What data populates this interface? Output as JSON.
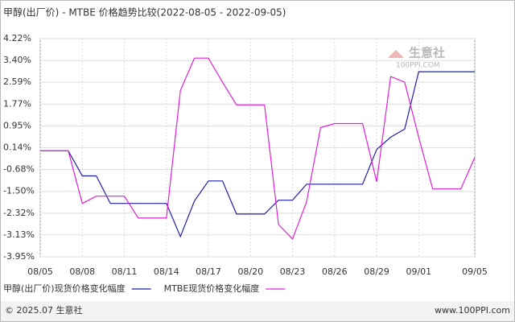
{
  "chart_data": {
    "type": "line",
    "title": "甲醇(出厂价) - MTBE 价格趋势比较(2022-08-05 - 2022-09-05)",
    "categories": [
      "08/05",
      null,
      null,
      "08/08",
      null,
      null,
      "08/11",
      null,
      null,
      "08/14",
      null,
      null,
      "08/17",
      null,
      null,
      "08/20",
      null,
      null,
      "08/23",
      null,
      null,
      "08/26",
      null,
      null,
      "08/29",
      null,
      null,
      "09/01",
      null,
      null,
      null,
      "09/05"
    ],
    "series": [
      {
        "name": "甲醇(出厂价)现货价格变化幅度",
        "color": "#1f1fa8",
        "values": [
          0.02,
          0.02,
          0.02,
          -0.92,
          -0.92,
          -1.95,
          -1.95,
          -1.95,
          -1.95,
          -1.95,
          -3.19,
          -1.86,
          -1.11,
          -1.11,
          -2.35,
          -2.35,
          -2.35,
          -1.83,
          -1.83,
          -1.23,
          -1.23,
          -1.23,
          -1.23,
          -1.23,
          0.07,
          0.53,
          0.83,
          2.98,
          2.98,
          2.98,
          2.98,
          2.98
        ]
      },
      {
        "name": "MTBE现货价格变化幅度",
        "color": "#e020d8",
        "values": [
          0.02,
          0.02,
          0.02,
          -1.95,
          -1.68,
          -1.68,
          -1.68,
          -2.5,
          -2.5,
          -2.5,
          2.28,
          3.49,
          3.49,
          2.59,
          1.74,
          1.74,
          1.74,
          -2.74,
          -3.28,
          -1.89,
          0.89,
          1.04,
          1.04,
          1.04,
          -1.14,
          2.8,
          2.59,
          0.53,
          -1.41,
          -1.41,
          -1.41,
          -0.23
        ]
      }
    ],
    "ylim": [
      -3.95,
      4.22
    ],
    "yticks": [
      {
        "value": 4.22,
        "label": "4.22%"
      },
      {
        "value": 3.4,
        "label": "3.40%"
      },
      {
        "value": 2.59,
        "label": "2.59%"
      },
      {
        "value": 1.77,
        "label": "1.77%"
      },
      {
        "value": 0.95,
        "label": "0.95%"
      },
      {
        "value": 0.14,
        "label": "0.14%"
      },
      {
        "value": -0.68,
        "label": "-0.68%"
      },
      {
        "value": -1.5,
        "label": "-1.50%"
      },
      {
        "value": -2.32,
        "label": "-2.32%"
      },
      {
        "value": -3.13,
        "label": "-3.13%"
      },
      {
        "value": -3.95,
        "label": "-3.95%"
      }
    ],
    "grid": true,
    "legend": "bottom"
  },
  "watermark": {
    "name": "生意社",
    "site": "100PPI.COM"
  },
  "footer": {
    "left": "© 2025.07 生意社",
    "right": "www.100PPI.com"
  }
}
